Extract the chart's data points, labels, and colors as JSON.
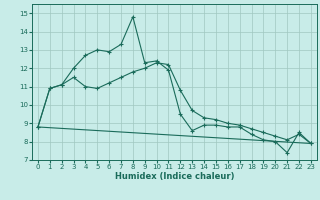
{
  "xlabel": "Humidex (Indice chaleur)",
  "background_color": "#c8ece8",
  "grid_color": "#a0c8c0",
  "line_color": "#1a6b5a",
  "xlim": [
    -0.5,
    23.5
  ],
  "ylim": [
    7,
    15.5
  ],
  "yticks": [
    7,
    8,
    9,
    10,
    11,
    12,
    13,
    14,
    15
  ],
  "xticks": [
    0,
    1,
    2,
    3,
    4,
    5,
    6,
    7,
    8,
    9,
    10,
    11,
    12,
    13,
    14,
    15,
    16,
    17,
    18,
    19,
    20,
    21,
    22,
    23
  ],
  "lines": [
    {
      "x": [
        0,
        1,
        2,
        3,
        4,
        5,
        6,
        7,
        8,
        9,
        10,
        11,
        12,
        13,
        14,
        15,
        16,
        17,
        18,
        19,
        20,
        21,
        22,
        23
      ],
      "y": [
        8.8,
        10.9,
        11.1,
        12.0,
        12.7,
        13.0,
        12.9,
        13.3,
        14.8,
        12.3,
        12.4,
        11.9,
        9.5,
        8.6,
        8.9,
        8.9,
        8.8,
        8.8,
        8.4,
        8.1,
        8.0,
        7.4,
        8.5,
        7.9
      ],
      "marker": true
    },
    {
      "x": [
        0,
        1,
        2,
        3,
        4,
        5,
        6,
        7,
        8,
        9,
        10,
        11,
        12,
        13,
        14,
        15,
        16,
        17,
        18,
        19,
        20,
        21,
        22,
        23
      ],
      "y": [
        8.8,
        10.9,
        11.1,
        11.5,
        11.0,
        10.9,
        11.2,
        11.5,
        11.8,
        12.0,
        12.3,
        12.2,
        10.8,
        9.7,
        9.3,
        9.2,
        9.0,
        8.9,
        8.7,
        8.5,
        8.3,
        8.1,
        8.4,
        7.9
      ],
      "marker": true
    },
    {
      "x": [
        0,
        23
      ],
      "y": [
        8.8,
        7.9
      ],
      "marker": false
    }
  ]
}
